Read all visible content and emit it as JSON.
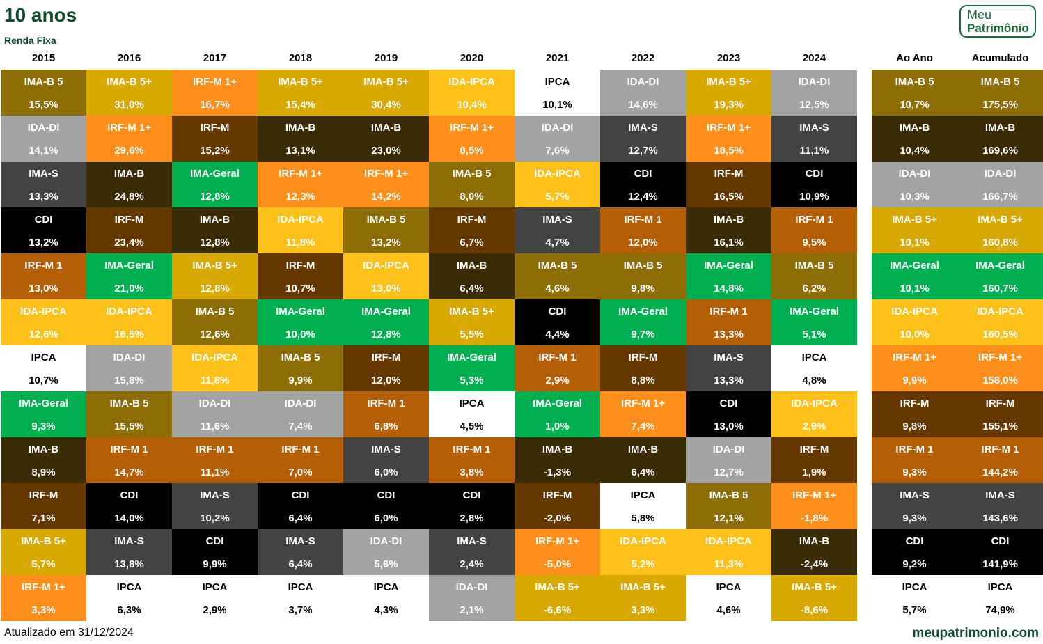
{
  "header": {
    "title": "10 anos",
    "subtitle": "Renda Fixa",
    "logo_line1": "Meu",
    "logo_line2": "Patrimônio"
  },
  "footer": {
    "updated": "Atualizado em 31/12/2024",
    "site": "meupatrimonio.com"
  },
  "colors": {
    "IMA-B 5": "#8c6d06",
    "IMA-B 5+": "#d9a903",
    "IRF-M 1+": "#fe8f1b",
    "IDA-IPCA": "#fec11a",
    "IPCA": "#ffffff",
    "IDA-DI": "#a3a3a3",
    "IMA-S": "#434343",
    "IMA-B": "#3a2c07",
    "IRF-M": "#653800",
    "CDI": "#000000",
    "IRF-M 1": "#b45f06",
    "IMA-Geral": "#00b050"
  },
  "chart_data": {
    "type": "table",
    "title": "10 anos",
    "subtitle": "Renda Fixa",
    "columns": [
      "2015",
      "2016",
      "2017",
      "2018",
      "2019",
      "2020",
      "2021",
      "2022",
      "2023",
      "2024",
      "Ao Ano",
      "Acumulado"
    ],
    "rankings": [
      [
        {
          "name": "IMA-B 5",
          "value": "15,5%"
        },
        {
          "name": "IDA-DI",
          "value": "14,1%"
        },
        {
          "name": "IMA-S",
          "value": "13,3%"
        },
        {
          "name": "CDI",
          "value": "13,2%"
        },
        {
          "name": "IRF-M 1",
          "value": "13,0%"
        },
        {
          "name": "IDA-IPCA",
          "value": "12,6%"
        },
        {
          "name": "IPCA",
          "value": "10,7%"
        },
        {
          "name": "IMA-Geral",
          "value": "9,3%"
        },
        {
          "name": "IMA-B",
          "value": "8,9%"
        },
        {
          "name": "IRF-M",
          "value": "7,1%"
        },
        {
          "name": "IMA-B 5+",
          "value": "5,7%"
        },
        {
          "name": "IRF-M 1+",
          "value": "3,3%"
        }
      ],
      [
        {
          "name": "IMA-B 5+",
          "value": "31,0%"
        },
        {
          "name": "IRF-M 1+",
          "value": "29,6%"
        },
        {
          "name": "IMA-B",
          "value": "24,8%"
        },
        {
          "name": "IRF-M",
          "value": "23,4%"
        },
        {
          "name": "IMA-Geral",
          "value": "21,0%"
        },
        {
          "name": "IDA-IPCA",
          "value": "16,5%"
        },
        {
          "name": "IDA-DI",
          "value": "15,8%"
        },
        {
          "name": "IMA-B 5",
          "value": "15,5%"
        },
        {
          "name": "IRF-M 1",
          "value": "14,7%"
        },
        {
          "name": "CDI",
          "value": "14,0%"
        },
        {
          "name": "IMA-S",
          "value": "13,8%"
        },
        {
          "name": "IPCA",
          "value": "6,3%"
        }
      ],
      [
        {
          "name": "IRF-M 1+",
          "value": "16,7%"
        },
        {
          "name": "IRF-M",
          "value": "15,2%"
        },
        {
          "name": "IMA-Geral",
          "value": "12,8%"
        },
        {
          "name": "IMA-B",
          "value": "12,8%"
        },
        {
          "name": "IMA-B 5+",
          "value": "12,8%"
        },
        {
          "name": "IMA-B 5",
          "value": "12,6%"
        },
        {
          "name": "IDA-IPCA",
          "value": "11,8%"
        },
        {
          "name": "IDA-DI",
          "value": "11,6%"
        },
        {
          "name": "IRF-M 1",
          "value": "11,1%"
        },
        {
          "name": "IMA-S",
          "value": "10,2%"
        },
        {
          "name": "CDI",
          "value": "9,9%"
        },
        {
          "name": "IPCA",
          "value": "2,9%"
        }
      ],
      [
        {
          "name": "IMA-B 5+",
          "value": "15,4%"
        },
        {
          "name": "IMA-B",
          "value": "13,1%"
        },
        {
          "name": "IRF-M 1+",
          "value": "12,3%"
        },
        {
          "name": "IDA-IPCA",
          "value": "11,8%"
        },
        {
          "name": "IRF-M",
          "value": "10,7%"
        },
        {
          "name": "IMA-Geral",
          "value": "10,0%"
        },
        {
          "name": "IMA-B 5",
          "value": "9,9%"
        },
        {
          "name": "IDA-DI",
          "value": "7,4%"
        },
        {
          "name": "IRF-M 1",
          "value": "7,0%"
        },
        {
          "name": "CDI",
          "value": "6,4%"
        },
        {
          "name": "IMA-S",
          "value": "6,4%"
        },
        {
          "name": "IPCA",
          "value": "3,7%"
        }
      ],
      [
        {
          "name": "IMA-B 5+",
          "value": "30,4%"
        },
        {
          "name": "IMA-B",
          "value": "23,0%"
        },
        {
          "name": "IRF-M 1+",
          "value": "14,2%"
        },
        {
          "name": "IMA-B 5",
          "value": "13,2%"
        },
        {
          "name": "IDA-IPCA",
          "value": "13,0%"
        },
        {
          "name": "IMA-Geral",
          "value": "12,8%"
        },
        {
          "name": "IRF-M",
          "value": "12,0%"
        },
        {
          "name": "IRF-M 1",
          "value": "6,8%"
        },
        {
          "name": "IMA-S",
          "value": "6,0%"
        },
        {
          "name": "CDI",
          "value": "6,0%"
        },
        {
          "name": "IDA-DI",
          "value": "5,6%"
        },
        {
          "name": "IPCA",
          "value": "4,3%"
        }
      ],
      [
        {
          "name": "IDA-IPCA",
          "value": "10,4%"
        },
        {
          "name": "IRF-M 1+",
          "value": "8,5%"
        },
        {
          "name": "IMA-B 5",
          "value": "8,0%"
        },
        {
          "name": "IRF-M",
          "value": "6,7%"
        },
        {
          "name": "IMA-B",
          "value": "6,4%"
        },
        {
          "name": "IMA-B 5+",
          "value": "5,5%"
        },
        {
          "name": "IMA-Geral",
          "value": "5,3%"
        },
        {
          "name": "IPCA",
          "value": "4,5%"
        },
        {
          "name": "IRF-M 1",
          "value": "3,8%"
        },
        {
          "name": "CDI",
          "value": "2,8%"
        },
        {
          "name": "IMA-S",
          "value": "2,4%"
        },
        {
          "name": "IDA-DI",
          "value": "2,1%"
        }
      ],
      [
        {
          "name": "IPCA",
          "value": "10,1%"
        },
        {
          "name": "IDA-DI",
          "value": "7,6%"
        },
        {
          "name": "IDA-IPCA",
          "value": "5,7%"
        },
        {
          "name": "IMA-S",
          "value": "4,7%"
        },
        {
          "name": "IMA-B 5",
          "value": "4,6%"
        },
        {
          "name": "CDI",
          "value": "4,4%"
        },
        {
          "name": "IRF-M 1",
          "value": "2,9%"
        },
        {
          "name": "IMA-Geral",
          "value": "1,0%"
        },
        {
          "name": "IMA-B",
          "value": "-1,3%"
        },
        {
          "name": "IRF-M",
          "value": "-2,0%"
        },
        {
          "name": "IRF-M 1+",
          "value": "-5,0%"
        },
        {
          "name": "IMA-B 5+",
          "value": "-6,6%"
        }
      ],
      [
        {
          "name": "IDA-DI",
          "value": "14,6%"
        },
        {
          "name": "IMA-S",
          "value": "12,7%"
        },
        {
          "name": "CDI",
          "value": "12,4%"
        },
        {
          "name": "IRF-M 1",
          "value": "12,0%"
        },
        {
          "name": "IMA-B 5",
          "value": "9,8%"
        },
        {
          "name": "IMA-Geral",
          "value": "9,7%"
        },
        {
          "name": "IRF-M",
          "value": "8,8%"
        },
        {
          "name": "IRF-M 1+",
          "value": "7,4%"
        },
        {
          "name": "IMA-B",
          "value": "6,4%"
        },
        {
          "name": "IPCA",
          "value": "5,8%"
        },
        {
          "name": "IDA-IPCA",
          "value": "5,2%"
        },
        {
          "name": "IMA-B 5+",
          "value": "3,3%"
        }
      ],
      [
        {
          "name": "IMA-B 5+",
          "value": "19,3%"
        },
        {
          "name": "IRF-M 1+",
          "value": "18,5%"
        },
        {
          "name": "IRF-M",
          "value": "16,5%"
        },
        {
          "name": "IMA-B",
          "value": "16,1%"
        },
        {
          "name": "IMA-Geral",
          "value": "14,8%"
        },
        {
          "name": "IRF-M 1",
          "value": "13,3%"
        },
        {
          "name": "IMA-S",
          "value": "13,3%"
        },
        {
          "name": "CDI",
          "value": "13,0%"
        },
        {
          "name": "IDA-DI",
          "value": "12,7%"
        },
        {
          "name": "IMA-B 5",
          "value": "12,1%"
        },
        {
          "name": "IDA-IPCA",
          "value": "11,3%"
        },
        {
          "name": "IPCA",
          "value": "4,6%"
        }
      ],
      [
        {
          "name": "IDA-DI",
          "value": "12,5%"
        },
        {
          "name": "IMA-S",
          "value": "11,1%"
        },
        {
          "name": "CDI",
          "value": "10,9%"
        },
        {
          "name": "IRF-M 1",
          "value": "9,5%"
        },
        {
          "name": "IMA-B 5",
          "value": "6,2%"
        },
        {
          "name": "IMA-Geral",
          "value": "5,1%"
        },
        {
          "name": "IPCA",
          "value": "4,8%"
        },
        {
          "name": "IDA-IPCA",
          "value": "2,9%"
        },
        {
          "name": "IRF-M",
          "value": "1,9%"
        },
        {
          "name": "IRF-M 1+",
          "value": "-1,8%"
        },
        {
          "name": "IMA-B",
          "value": "-2,4%"
        },
        {
          "name": "IMA-B 5+",
          "value": "-8,6%"
        }
      ],
      [
        {
          "name": "IMA-B 5",
          "value": "10,7%"
        },
        {
          "name": "IMA-B",
          "value": "10,4%"
        },
        {
          "name": "IDA-DI",
          "value": "10,3%"
        },
        {
          "name": "IMA-B 5+",
          "value": "10,1%"
        },
        {
          "name": "IMA-Geral",
          "value": "10,1%"
        },
        {
          "name": "IDA-IPCA",
          "value": "10,0%"
        },
        {
          "name": "IRF-M 1+",
          "value": "9,9%"
        },
        {
          "name": "IRF-M",
          "value": "9,8%"
        },
        {
          "name": "IRF-M 1",
          "value": "9,3%"
        },
        {
          "name": "IMA-S",
          "value": "9,3%"
        },
        {
          "name": "CDI",
          "value": "9,2%"
        },
        {
          "name": "IPCA",
          "value": "5,7%"
        }
      ],
      [
        {
          "name": "IMA-B 5",
          "value": "175,5%"
        },
        {
          "name": "IMA-B",
          "value": "169,6%"
        },
        {
          "name": "IDA-DI",
          "value": "166,7%"
        },
        {
          "name": "IMA-B 5+",
          "value": "160,8%"
        },
        {
          "name": "IMA-Geral",
          "value": "160,7%"
        },
        {
          "name": "IDA-IPCA",
          "value": "160,5%"
        },
        {
          "name": "IRF-M 1+",
          "value": "158,0%"
        },
        {
          "name": "IRF-M",
          "value": "155,1%"
        },
        {
          "name": "IRF-M 1",
          "value": "144,2%"
        },
        {
          "name": "IMA-S",
          "value": "143,6%"
        },
        {
          "name": "CDI",
          "value": "141,9%"
        },
        {
          "name": "IPCA",
          "value": "74,9%"
        }
      ]
    ]
  }
}
